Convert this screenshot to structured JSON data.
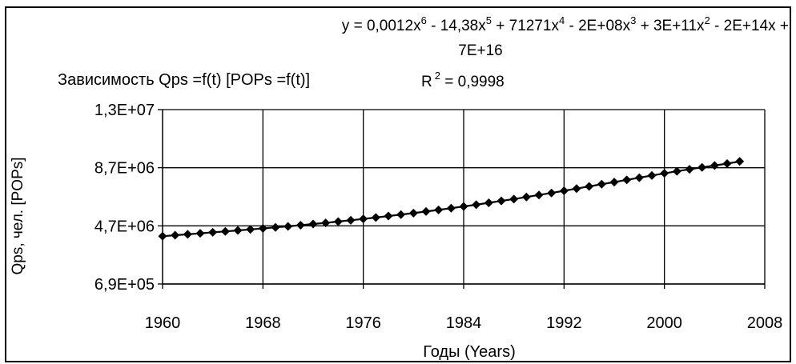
{
  "chart_data": {
    "type": "scatter",
    "title": "Зависимость Qps =f(t) [POPs =f(t)]",
    "xlabel": "Годы (Years)",
    "ylabel": "Qps, чел. [POPs]",
    "xlim": [
      1960,
      2008
    ],
    "ylim": [
      690000,
      12700000
    ],
    "x_ticks": [
      "1960",
      "1968",
      "1976",
      "1984",
      "1992",
      "2000",
      "2008"
    ],
    "y_ticks": [
      "6,9E+05",
      "4,7E+06",
      "8,7E+06",
      "1,3E+07"
    ],
    "grid": true,
    "trendline": {
      "equation_parts": {
        "p1": "y = 0,0012x",
        "e1": "6",
        "p2": " - 14,38x",
        "e2": "5",
        "p3": " + 71271x",
        "e3": "4",
        "p4": " - 2E+08x",
        "e4": "3",
        "p5": " + 3E+11x",
        "e5": "2",
        "p6": " - 2E+14x +"
      },
      "equation_line2": "7E+16",
      "r2_label": "R",
      "r2_exp": "2",
      "r2_value": " = 0,9998"
    },
    "series": [
      {
        "marker": "diamond",
        "color": "#000000",
        "points": [
          [
            1960,
            3980000
          ],
          [
            1961,
            4050000
          ],
          [
            1962,
            4110000
          ],
          [
            1963,
            4180000
          ],
          [
            1964,
            4250000
          ],
          [
            1965,
            4310000
          ],
          [
            1966,
            4380000
          ],
          [
            1967,
            4450000
          ],
          [
            1968,
            4520000
          ],
          [
            1969,
            4590000
          ],
          [
            1970,
            4660000
          ],
          [
            1971,
            4740000
          ],
          [
            1972,
            4820000
          ],
          [
            1973,
            4900000
          ],
          [
            1974,
            4990000
          ],
          [
            1975,
            5080000
          ],
          [
            1976,
            5170000
          ],
          [
            1977,
            5270000
          ],
          [
            1978,
            5370000
          ],
          [
            1979,
            5470000
          ],
          [
            1980,
            5570000
          ],
          [
            1981,
            5680000
          ],
          [
            1982,
            5790000
          ],
          [
            1983,
            5910000
          ],
          [
            1984,
            6030000
          ],
          [
            1985,
            6150000
          ],
          [
            1986,
            6280000
          ],
          [
            1987,
            6410000
          ],
          [
            1988,
            6540000
          ],
          [
            1989,
            6680000
          ],
          [
            1990,
            6820000
          ],
          [
            1991,
            6960000
          ],
          [
            1992,
            7110000
          ],
          [
            1993,
            7260000
          ],
          [
            1994,
            7410000
          ],
          [
            1995,
            7560000
          ],
          [
            1996,
            7710000
          ],
          [
            1997,
            7860000
          ],
          [
            1998,
            8010000
          ],
          [
            1999,
            8160000
          ],
          [
            2000,
            8310000
          ],
          [
            2001,
            8450000
          ],
          [
            2002,
            8590000
          ],
          [
            2003,
            8720000
          ],
          [
            2004,
            8850000
          ],
          [
            2005,
            8980000
          ],
          [
            2006,
            9130000
          ]
        ]
      }
    ]
  }
}
